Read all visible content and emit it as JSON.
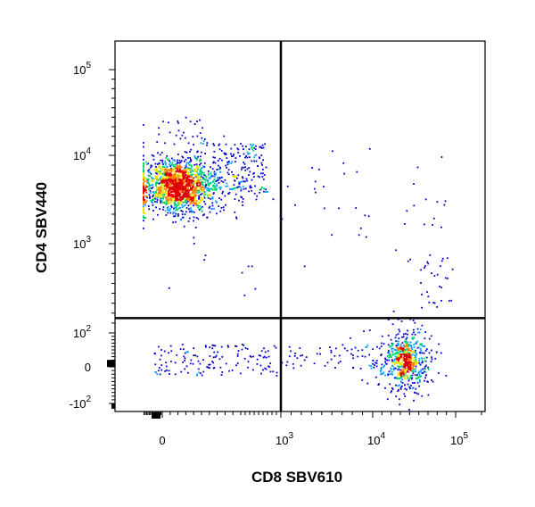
{
  "chart_data": {
    "type": "scatter",
    "style": "flow cytometry density dot plot with quadrant gates",
    "xlabel": "CD8 SBV610",
    "ylabel": "CD4 SBV440",
    "x_scale": "biexponential (logicle)",
    "y_scale": "biexponential (logicle)",
    "x_ticks": [
      {
        "value": 0,
        "label": "0"
      },
      {
        "value": 1000,
        "label": "10^3"
      },
      {
        "value": 10000,
        "label": "10^4"
      },
      {
        "value": 100000,
        "label": "10^5"
      }
    ],
    "y_ticks": [
      {
        "value": -100,
        "label": "-10^2"
      },
      {
        "value": 0,
        "label": "0"
      },
      {
        "value": 100,
        "label": "10^2"
      },
      {
        "value": 1000,
        "label": "10^3"
      },
      {
        "value": 10000,
        "label": "10^4"
      },
      {
        "value": 100000,
        "label": "10^5"
      }
    ],
    "quadrant_gate": {
      "x": 1000,
      "y": 250
    },
    "populations": [
      {
        "name": "CD4+ CD8-",
        "x_center": 20,
        "y_center": 7000,
        "relative_size": "large",
        "peak_density": "high"
      },
      {
        "name": "CD4- CD8+",
        "x_center": 45000,
        "y_center": 20,
        "relative_size": "medium",
        "peak_density": "medium"
      },
      {
        "name": "CD4- CD8-",
        "x_center": 30,
        "y_center": 20,
        "relative_size": "small",
        "peak_density": "low"
      }
    ],
    "density_colors": [
      "#0000cc",
      "#00a0ff",
      "#00d070",
      "#e6e600",
      "#ff8000",
      "#e00000"
    ],
    "grid": false,
    "legend": "none"
  }
}
